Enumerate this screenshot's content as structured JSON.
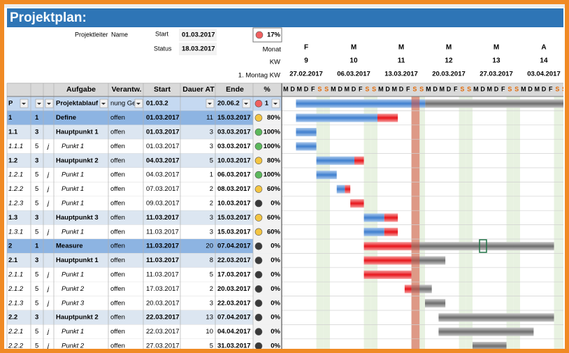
{
  "title": "Projektplan:",
  "info": {
    "leader_label": "Projektleiter",
    "leader": "Name",
    "start_label": "Start",
    "start": "01.03.2017",
    "status_label": "Status",
    "status": "18.03.2017",
    "progress": "17%"
  },
  "timeline": {
    "month_label": "Monat",
    "kw_label": "KW",
    "monday_label": "1. Montag KW",
    "day_letters": [
      "M",
      "D",
      "M",
      "D",
      "F",
      "S",
      "S"
    ],
    "weeks": [
      {
        "month": "F",
        "kw": "9",
        "monday": "27.02.2017"
      },
      {
        "month": "M",
        "kw": "10",
        "monday": "06.03.2017"
      },
      {
        "month": "M",
        "kw": "11",
        "monday": "13.03.2017"
      },
      {
        "month": "M",
        "kw": "12",
        "monday": "20.03.2017"
      },
      {
        "month": "M",
        "kw": "13",
        "monday": "27.03.2017"
      },
      {
        "month": "A",
        "kw": "14",
        "monday": "03.04.2017"
      }
    ]
  },
  "table": {
    "headers": [
      "Aufgabe",
      "Verantw.",
      "Start",
      "Dauer AT",
      "Ende",
      "%"
    ],
    "filter_row": {
      "id": "P",
      "task": "Projektablauf",
      "owner": "nung Ge",
      "start": "01.03.2",
      "end": "20.06.2",
      "pct": "1"
    },
    "rows": [
      {
        "id": "1",
        "level": "1",
        "task": "Define",
        "owner": "offen",
        "start": "01.03.2017",
        "duration": 11,
        "end": "15.03.2017",
        "pct": "80%"
      },
      {
        "id": "1.1",
        "level": "3",
        "task": "Hauptpunkt 1",
        "owner": "offen",
        "start": "01.03.2017",
        "duration": 3,
        "end": "03.03.2017",
        "pct": "100%"
      },
      {
        "id": "1.1.1",
        "level": "5",
        "flag": "j",
        "task": "Punkt 1",
        "owner": "offen",
        "start": "01.03.2017",
        "duration": 3,
        "end": "03.03.2017",
        "pct": "100%"
      },
      {
        "id": "1.2",
        "level": "3",
        "task": "Hauptpunkt 2",
        "owner": "offen",
        "start": "04.03.2017",
        "duration": 5,
        "end": "10.03.2017",
        "pct": "80%"
      },
      {
        "id": "1.2.1",
        "level": "5",
        "flag": "j",
        "task": "Punkt 1",
        "owner": "offen",
        "start": "04.03.2017",
        "duration": 1,
        "end": "06.03.2017",
        "pct": "100%"
      },
      {
        "id": "1.2.2",
        "level": "5",
        "flag": "j",
        "task": "Punkt 1",
        "owner": "offen",
        "start": "07.03.2017",
        "duration": 2,
        "end": "08.03.2017",
        "pct": "60%"
      },
      {
        "id": "1.2.3",
        "level": "5",
        "flag": "j",
        "task": "Punkt 1",
        "owner": "offen",
        "start": "09.03.2017",
        "duration": 2,
        "end": "10.03.2017",
        "pct": "0%"
      },
      {
        "id": "1.3",
        "level": "3",
        "task": "Hauptpunkt 3",
        "owner": "offen",
        "start": "11.03.2017",
        "duration": 3,
        "end": "15.03.2017",
        "pct": "60%"
      },
      {
        "id": "1.3.1",
        "level": "5",
        "flag": "j",
        "task": "Punkt 1",
        "owner": "offen",
        "start": "11.03.2017",
        "duration": 3,
        "end": "15.03.2017",
        "pct": "60%"
      },
      {
        "id": "2",
        "level": "1",
        "task": "Measure",
        "owner": "offen",
        "start": "11.03.2017",
        "duration": 20,
        "end": "07.04.2017",
        "pct": "0%"
      },
      {
        "id": "2.1",
        "level": "3",
        "task": "Hauptpunkt 1",
        "owner": "offen",
        "start": "11.03.2017",
        "duration": 8,
        "end": "22.03.2017",
        "pct": "0%"
      },
      {
        "id": "2.1.1",
        "level": "5",
        "flag": "j",
        "task": "Punkt 1",
        "owner": "offen",
        "start": "11.03.2017",
        "duration": 5,
        "end": "17.03.2017",
        "pct": "0%"
      },
      {
        "id": "2.1.2",
        "level": "5",
        "flag": "j",
        "task": "Punkt 2",
        "owner": "offen",
        "start": "17.03.2017",
        "duration": 2,
        "end": "20.03.2017",
        "pct": "0%"
      },
      {
        "id": "2.1.3",
        "level": "5",
        "flag": "j",
        "task": "Punkt 3",
        "owner": "offen",
        "start": "20.03.2017",
        "duration": 3,
        "end": "22.03.2017",
        "pct": "0%"
      },
      {
        "id": "2.2",
        "level": "3",
        "task": "Hauptpunkt 2",
        "owner": "offen",
        "start": "22.03.2017",
        "duration": 13,
        "end": "07.04.2017",
        "pct": "0%"
      },
      {
        "id": "2.2.1",
        "level": "5",
        "flag": "j",
        "task": "Punkt 1",
        "owner": "offen",
        "start": "22.03.2017",
        "duration": 10,
        "end": "04.04.2017",
        "pct": "0%"
      },
      {
        "id": "2.2.2",
        "level": "5",
        "flag": "j",
        "task": "Punkt 2",
        "owner": "offen",
        "start": "27.03.2017",
        "duration": 5,
        "end": "31.03.2017",
        "pct": "0%"
      }
    ]
  }
}
